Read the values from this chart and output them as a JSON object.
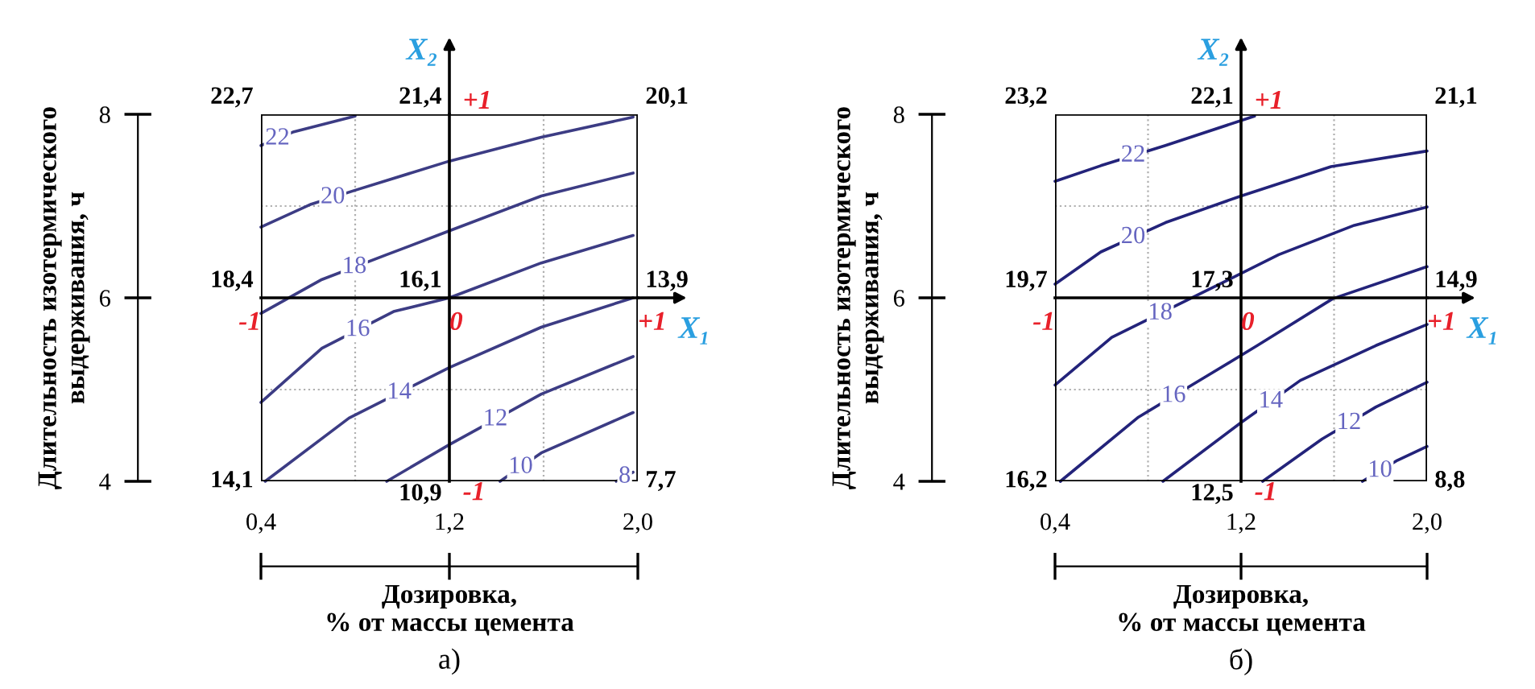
{
  "chart_data": [
    {
      "type": "line",
      "xlabel": "Дозировка,\n% от массы цемента",
      "ylabel": "Длительность изотермического\nвыдерживания, ч",
      "xlim": [
        0.4,
        2.0
      ],
      "ylim": [
        4,
        8
      ],
      "xticks": [
        {
          "value": 0.4,
          "label": "0,4"
        },
        {
          "value": 1.2,
          "label": "1,2"
        },
        {
          "value": 2.0,
          "label": "2,0"
        }
      ],
      "yticks": [
        4,
        6,
        8
      ],
      "x2lim": [
        -1,
        1
      ],
      "x2ticks": [
        -1,
        0,
        {
          "value": 1,
          "label": "+1"
        }
      ],
      "x2label": "X₁",
      "y2lim": [
        -1,
        1
      ],
      "y2ticks": [
        -1,
        {
          "value": 1,
          "label": "+1"
        }
      ],
      "y2label": "X₂",
      "legend": false,
      "marker": "none",
      "line_style": "solid",
      "ref_lines": [
        {
          "axis": "x",
          "value": 0.8,
          "color": "#b0b0b0",
          "line_style": "dotted"
        },
        {
          "axis": "x",
          "value": 1.6,
          "color": "#b0b0b0",
          "line_style": "dotted"
        },
        {
          "axis": "y",
          "value": 5,
          "color": "#b0b0b0",
          "line_style": "dotted"
        },
        {
          "axis": "y",
          "value": 7,
          "color": "#b0b0b0",
          "line_style": "dotted"
        }
      ],
      "series": [
        {
          "name": "22",
          "color": "#3c3c84",
          "x": [
            0.4,
            0.54,
            0.8
          ],
          "values": [
            7.66,
            7.81,
            7.98
          ]
        },
        {
          "name": "20",
          "color": "#3c3c84",
          "x": [
            0.4,
            0.613,
            0.797,
            1.2,
            1.59,
            1.98
          ],
          "values": [
            6.77,
            7.02,
            7.17,
            7.49,
            7.75,
            7.97
          ]
        },
        {
          "name": "18",
          "color": "#3c3c84",
          "x": [
            0.4,
            0.659,
            0.934,
            1.2,
            1.59,
            1.98
          ],
          "values": [
            5.83,
            6.2,
            6.47,
            6.73,
            7.11,
            7.36
          ]
        },
        {
          "name": "16",
          "color": "#3c3c84",
          "x": [
            0.4,
            0.659,
            0.963,
            1.2,
            1.59,
            1.98
          ],
          "values": [
            4.86,
            5.45,
            5.85,
            6.0,
            6.38,
            6.68
          ]
        },
        {
          "name": "14",
          "color": "#3c3c84",
          "x": [
            0.418,
            0.774,
            1.2,
            1.59,
            1.98
          ],
          "values": [
            4.0,
            4.69,
            5.24,
            5.68,
            6.0
          ]
        },
        {
          "name": "12",
          "color": "#3c3c84",
          "x": [
            0.934,
            1.2,
            1.59,
            1.98
          ],
          "values": [
            4.0,
            4.4,
            4.95,
            5.36
          ]
        },
        {
          "name": "10",
          "color": "#3c3c84",
          "x": [
            1.415,
            1.59,
            1.98
          ],
          "values": [
            4.0,
            4.31,
            4.75
          ]
        },
        {
          "name": "8",
          "color": "#3c3c84",
          "x": [
            1.908,
            1.98
          ],
          "values": [
            4.0,
            4.1
          ]
        }
      ],
      "annotations": [
        "22,7",
        "21,4",
        "20,1",
        "18,4",
        "16,1",
        "13,9",
        "14,1",
        "10,9",
        "7,7",
        "а)"
      ]
    },
    {
      "type": "line",
      "xlabel": "Дозировка,\n% от массы цемента",
      "ylabel": "Длительность изотермического\nвыдерживания, ч",
      "xlim": [
        0.4,
        2.0
      ],
      "ylim": [
        4,
        8
      ],
      "xticks": [
        {
          "value": 0.4,
          "label": "0,4"
        },
        {
          "value": 1.2,
          "label": "1,2"
        },
        {
          "value": 2.0,
          "label": "2,0"
        }
      ],
      "yticks": [
        4,
        6,
        8
      ],
      "x2lim": [
        -1,
        1
      ],
      "x2ticks": [
        -1,
        0,
        {
          "value": 1,
          "label": "+1"
        }
      ],
      "x2label": "X₁",
      "y2lim": [
        -1,
        1
      ],
      "y2ticks": [
        -1,
        {
          "value": 1,
          "label": "+1"
        }
      ],
      "y2label": "X₂",
      "legend": false,
      "marker": "none",
      "line_style": "solid",
      "ref_lines": [
        {
          "axis": "x",
          "value": 0.8,
          "color": "#b0b0b0",
          "line_style": "dotted"
        },
        {
          "axis": "x",
          "value": 1.6,
          "color": "#b0b0b0",
          "line_style": "dotted"
        },
        {
          "axis": "y",
          "value": 5,
          "color": "#b0b0b0",
          "line_style": "dotted"
        },
        {
          "axis": "y",
          "value": 7,
          "color": "#b0b0b0",
          "line_style": "dotted"
        }
      ],
      "series": [
        {
          "name": "22",
          "color": "#23237a",
          "x": [
            0.4,
            0.597,
            0.875,
            1.258
          ],
          "values": [
            7.27,
            7.44,
            7.66,
            7.98
          ]
        },
        {
          "name": "20",
          "color": "#23237a",
          "x": [
            0.4,
            0.597,
            0.875,
            1.2,
            1.587,
            2.0
          ],
          "values": [
            6.15,
            6.5,
            6.82,
            7.11,
            7.43,
            7.6
          ]
        },
        {
          "name": "18",
          "color": "#23237a",
          "x": [
            0.4,
            0.644,
            1.061,
            1.362,
            1.687,
            2.0
          ],
          "values": [
            5.05,
            5.57,
            6.09,
            6.47,
            6.79,
            6.99
          ]
        },
        {
          "name": "16",
          "color": "#23237a",
          "x": [
            0.423,
            0.759,
            1.061,
            1.27,
            1.594,
            2.0
          ],
          "values": [
            4.0,
            4.7,
            5.16,
            5.48,
            5.99,
            6.34
          ]
        },
        {
          "name": "14",
          "color": "#23237a",
          "x": [
            0.864,
            1.2,
            1.455,
            1.78,
            2.0
          ],
          "values": [
            4.0,
            4.64,
            5.1,
            5.48,
            5.71
          ]
        },
        {
          "name": "12",
          "color": "#23237a",
          "x": [
            1.293,
            1.548,
            1.78,
            2.0
          ],
          "values": [
            4.0,
            4.46,
            4.81,
            5.08
          ]
        },
        {
          "name": "10",
          "color": "#23237a",
          "x": [
            1.722,
            1.873,
            2.0
          ],
          "values": [
            4.0,
            4.23,
            4.38
          ]
        }
      ],
      "annotations": [
        "23,2",
        "22,1",
        "21,1",
        "19,7",
        "17,3",
        "14,9",
        "16,2",
        "12,5",
        "8,8",
        "б)"
      ]
    }
  ]
}
